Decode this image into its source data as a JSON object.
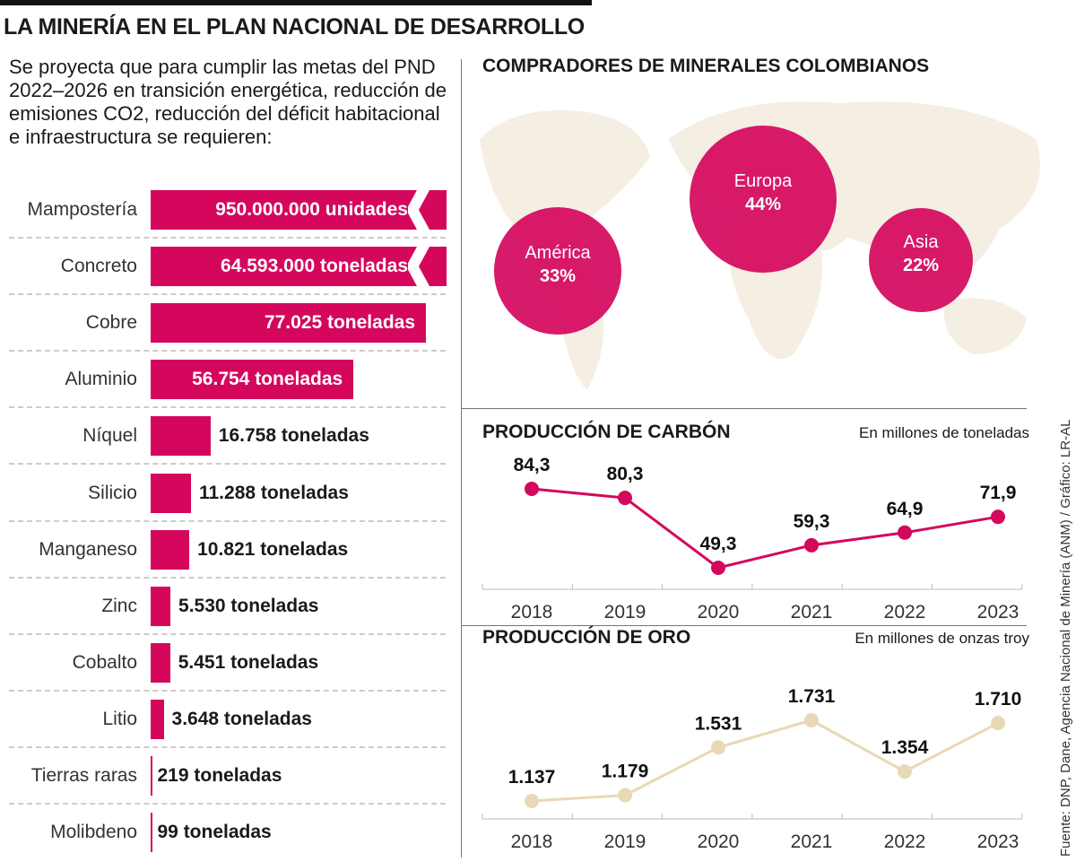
{
  "title": "LA MINERÍA EN EL PLAN NACIONAL DE DESARROLLO",
  "intro": "Se proyecta que para cumplir las metas del PND 2022–2026 en transición energética, reducción de emisiones CO2, reducción del déficit habitacional e infraestructura se requieren:",
  "colors": {
    "accent": "#d4075d",
    "gold": "#e8d9b5",
    "map": "#f4eee3"
  },
  "source": "Fuente: DNP, Dane, Agencia Nacional de Minería (ANM) / Gráfico: LR-AL",
  "chart_data": [
    {
      "type": "bar",
      "orientation": "horizontal",
      "categories": [
        "Mampostería",
        "Concreto",
        "Cobre",
        "Aluminio",
        "Níquel",
        "Silicio",
        "Manganeso",
        "Zinc",
        "Cobalto",
        "Litio",
        "Tierras raras",
        "Molibdeno"
      ],
      "values": [
        950000000,
        64593000,
        77025,
        56754,
        16758,
        11288,
        10821,
        5530,
        5451,
        3648,
        219,
        99
      ],
      "labels": [
        "950.000.000 unidades",
        "64.593.000 toneladas",
        "77.025 toneladas",
        "56.754 toneladas",
        "16.758 toneladas",
        "11.288 toneladas",
        "10.821 toneladas",
        "5.530 toneladas",
        "5.451 toneladas",
        "3.648 toneladas",
        "219 toneladas",
        "99 toneladas"
      ],
      "broken_axis": [
        "Mampostería",
        "Concreto"
      ]
    },
    {
      "type": "bubble",
      "title": "COMPRADORES DE MINERALES COLOMBIANOS",
      "categories": [
        "América",
        "Europa",
        "Asia"
      ],
      "values": [
        33,
        44,
        22
      ],
      "labels": [
        "33%",
        "44%",
        "22%"
      ]
    },
    {
      "type": "line",
      "title": "PRODUCCIÓN DE CARBÓN",
      "unit": "En millones de toneladas",
      "x": [
        "2018",
        "2019",
        "2020",
        "2021",
        "2022",
        "2023"
      ],
      "values": [
        84.3,
        80.3,
        49.3,
        59.3,
        64.9,
        71.9
      ],
      "labels": [
        "84,3",
        "80,3",
        "49,3",
        "59,3",
        "64,9",
        "71,9"
      ],
      "color": "#d4075d"
    },
    {
      "type": "line",
      "title": "PRODUCCIÓN DE ORO",
      "unit": "En millones de onzas troy",
      "x": [
        "2018",
        "2019",
        "2020",
        "2021",
        "2022",
        "2023"
      ],
      "values": [
        1.137,
        1.179,
        1.531,
        1.731,
        1.354,
        1.71
      ],
      "labels": [
        "1.137",
        "1.179",
        "1.531",
        "1.731",
        "1.354",
        "1.710"
      ],
      "color": "#e8d9b5"
    }
  ]
}
